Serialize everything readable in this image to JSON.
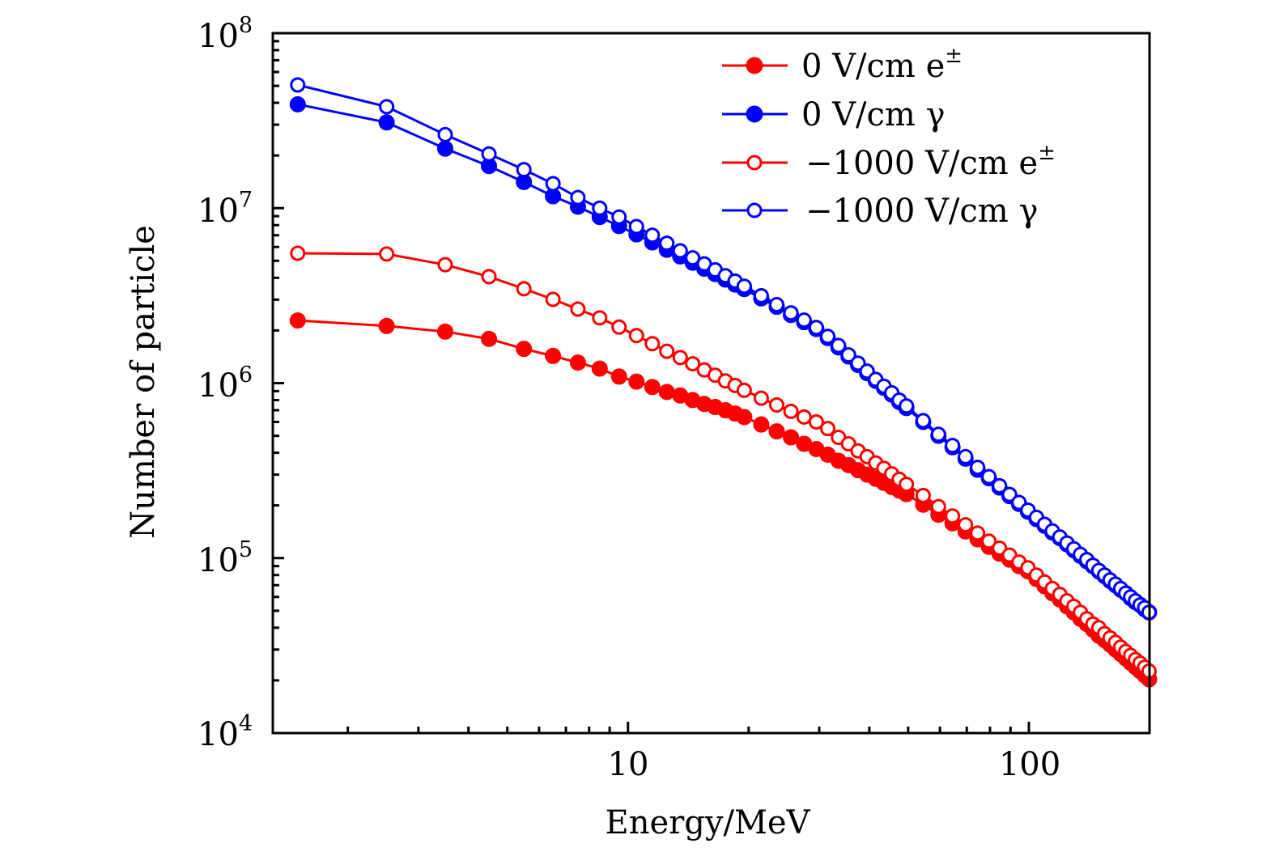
{
  "chart_data": {
    "type": "line",
    "title": "",
    "xlabel": "Energy/MeV",
    "ylabel": "Number of particle",
    "x_scale": "log",
    "y_scale": "log",
    "xlim": [
      1.3,
      200
    ],
    "ylim": [
      10000,
      100000000
    ],
    "grid": false,
    "legend_position": "top-right",
    "x_ticks": [
      {
        "value": 10,
        "label": "10"
      },
      {
        "value": 100,
        "label": "100"
      }
    ],
    "y_ticks": [
      {
        "value": 10000,
        "base": "10",
        "exp": "4"
      },
      {
        "value": 100000,
        "base": "10",
        "exp": "5"
      },
      {
        "value": 1000000,
        "base": "10",
        "exp": "6"
      },
      {
        "value": 10000000,
        "base": "10",
        "exp": "7"
      },
      {
        "value": 100000000,
        "base": "10",
        "exp": "8"
      }
    ],
    "x": [
      1.5,
      2.5,
      3.5,
      4.5,
      5.5,
      6.5,
      7.5,
      8.5,
      9.5,
      10.5,
      11.5,
      12.5,
      13.5,
      14.5,
      15.5,
      16.5,
      17.5,
      18.5,
      19.5,
      21.5,
      23.5,
      25.5,
      27.5,
      29.5,
      31.5,
      33.5,
      35.5,
      37.5,
      39.5,
      41.5,
      43.5,
      45.5,
      47.5,
      49.5,
      54.5,
      59.5,
      64.5,
      69.5,
      74.5,
      79.5,
      84.5,
      89.5,
      94.5,
      99.5,
      104.5,
      109.5,
      114.5,
      119.5,
      124.5,
      129.5,
      134.5,
      139.5,
      144.5,
      149.5,
      154.5,
      159.5,
      164.5,
      169.5,
      174.5,
      179.5,
      184.5,
      189.5,
      194.5,
      199.5
    ],
    "series": [
      {
        "name": "0 V/cm e±",
        "label_main": "0 V/cm e",
        "label_sup": "±",
        "color": "#ff0000",
        "marker": "filled-circle",
        "values": [
          2280000.0,
          2120000.0,
          1970000.0,
          1790000.0,
          1570000.0,
          1430000.0,
          1310000.0,
          1210000.0,
          1090000.0,
          1020000.0,
          950000.0,
          890000.0,
          850000.0,
          800000.0,
          760000.0,
          730000.0,
          700000.0,
          670000.0,
          640000.0,
          580000.0,
          530000.0,
          490000.0,
          450000.0,
          420000.0,
          390000.0,
          360000.0,
          340000.0,
          318000.0,
          300000.0,
          284000.0,
          269000.0,
          255000.0,
          243000.0,
          232000.0,
          202000.0,
          177000.0,
          158000.0,
          142000.0,
          128000.0,
          116000.0,
          106000.0,
          98000.0,
          90000.0,
          84000.0,
          76000.0,
          69000.0,
          63000.0,
          58000.0,
          53000.0,
          49000.0,
          45000.0,
          42000.0,
          39000.0,
          36000.0,
          34000.0,
          32000.0,
          30000.0,
          28300.0,
          26700.0,
          25200.0,
          23800.0,
          22600.0,
          21400.0,
          20300.0
        ]
      },
      {
        "name": "0 V/cm γ",
        "label_main": "0 V/cm γ",
        "label_sup": "",
        "color": "#0000ff",
        "marker": "filled-circle",
        "values": [
          39200000.0,
          30900000.0,
          21900000.0,
          17400000.0,
          14100000.0,
          11700000.0,
          10200000.0,
          8900000.0,
          7900000.0,
          7080000.0,
          6370000.0,
          5780000.0,
          5300000.0,
          4880000.0,
          4510000.0,
          4200000.0,
          3910000.0,
          3660000.0,
          3450000.0,
          3050000.0,
          2730000.0,
          2450000.0,
          2230000.0,
          2040000.0,
          1810000.0,
          1600000.0,
          1420000.0,
          1270000.0,
          1140000.0,
          1030000.0,
          940000.0,
          860000.0,
          780000.0,
          720000.0,
          600000.0,
          500000.0,
          430000.0,
          370000.0,
          320000.0,
          286000.0,
          253000.0,
          226000.0,
          204000.0,
          184000.0,
          167000.0,
          153000.0,
          140000.0,
          130000.0,
          120000.0,
          111000.0,
          103000.0,
          96000.0,
          90000.0,
          84000.0,
          79000.0,
          74000.0,
          70000.0,
          66000.0,
          63000.0,
          59000.0,
          56000.0,
          54000.0,
          51000.0,
          49000.0
        ]
      },
      {
        "name": "−1000 V/cm e±",
        "label_main": "−1000 V/cm e",
        "label_sup": "±",
        "color": "#ff0000",
        "marker": "open-circle",
        "values": [
          5520000.0,
          5470000.0,
          4750000.0,
          4060000.0,
          3460000.0,
          3010000.0,
          2650000.0,
          2360000.0,
          2090000.0,
          1870000.0,
          1680000.0,
          1520000.0,
          1400000.0,
          1290000.0,
          1190000.0,
          1110000.0,
          1030000.0,
          970000.0,
          910000.0,
          820000.0,
          750000.0,
          690000.0,
          640000.0,
          600000.0,
          550000.0,
          490000.0,
          450000.0,
          410000.0,
          380000.0,
          350000.0,
          326000.0,
          303000.0,
          282000.0,
          264000.0,
          228000.0,
          197000.0,
          174000.0,
          155000.0,
          139000.0,
          125000.0,
          114000.0,
          104000.0,
          95000.0,
          88000.0,
          80000.0,
          73000.0,
          67000.0,
          62000.0,
          57000.0,
          53000.0,
          49000.0,
          45000.0,
          42000.0,
          40000.0,
          37000.0,
          35000.0,
          33000.0,
          31000.0,
          29300.0,
          27800.0,
          26300.0,
          25100.0,
          23800.0,
          22600.0
        ]
      },
      {
        "name": "−1000 V/cm γ",
        "label_main": "−1000 V/cm γ",
        "label_sup": "",
        "color": "#0000ff",
        "marker": "open-circle",
        "values": [
          50600000.0,
          38000000.0,
          26300000.0,
          20400000.0,
          16600000.0,
          13800000.0,
          11500000.0,
          10000000.0,
          8900000.0,
          7850000.0,
          7000000.0,
          6300000.0,
          5700000.0,
          5200000.0,
          4800000.0,
          4440000.0,
          4110000.0,
          3830000.0,
          3580000.0,
          3160000.0,
          2810000.0,
          2520000.0,
          2290000.0,
          2080000.0,
          1850000.0,
          1640000.0,
          1450000.0,
          1300000.0,
          1170000.0,
          1050000.0,
          960000.0,
          880000.0,
          800000.0,
          740000.0,
          610000.0,
          510000.0,
          440000.0,
          380000.0,
          330000.0,
          292000.0,
          259000.0,
          231000.0,
          208000.0,
          188000.0,
          171000.0,
          156000.0,
          143000.0,
          132000.0,
          122000.0,
          113000.0,
          105000.0,
          98000.0,
          91000.0,
          85000.0,
          80000.0,
          75000.0,
          71000.0,
          67000.0,
          63000.0,
          60000.0,
          57000.0,
          54000.0,
          52000.0,
          49000.0
        ]
      }
    ]
  }
}
